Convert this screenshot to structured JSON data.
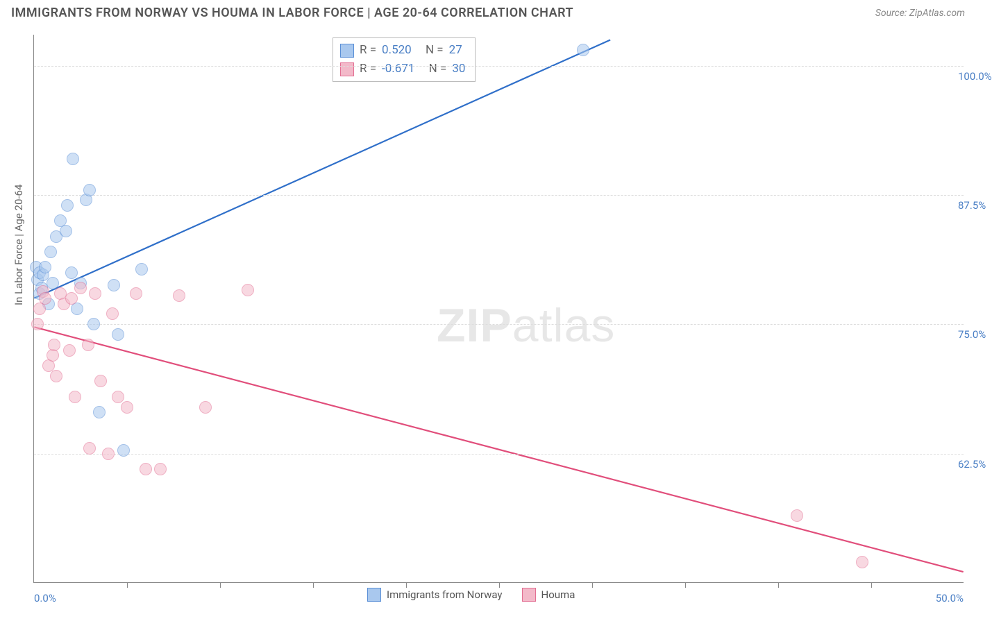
{
  "header": {
    "title": "IMMIGRANTS FROM NORWAY VS HOUMA IN LABOR FORCE | AGE 20-64 CORRELATION CHART",
    "source": "Source: ZipAtlas.com"
  },
  "chart": {
    "type": "scatter",
    "ylabel": "In Labor Force | Age 20-64",
    "xlim": [
      0,
      50
    ],
    "ylim": [
      50,
      103
    ],
    "x_axis_labels": {
      "left": "0.0%",
      "right": "50.0%"
    },
    "y_ticks": [
      {
        "v": 100.0,
        "label": "100.0%"
      },
      {
        "v": 87.5,
        "label": "87.5%"
      },
      {
        "v": 75.0,
        "label": "75.0%"
      },
      {
        "v": 62.5,
        "label": "62.5%"
      }
    ],
    "x_tick_positions": [
      5,
      10,
      15,
      20,
      25,
      30,
      35,
      40,
      45
    ],
    "gridline_color": "#dddddd",
    "axis_color": "#888888",
    "background_color": "#ffffff",
    "watermark": {
      "text_bold": "ZIP",
      "text_rest": "atlas",
      "color": "#000000",
      "opacity": 0.09,
      "fontsize": 68
    },
    "series": [
      {
        "name": "Immigrants from Norway",
        "key": "norway",
        "color_fill": "#a9c8ee",
        "color_stroke": "#5a8fd6",
        "marker_radius": 9,
        "fill_opacity": 0.55,
        "R": "0.520",
        "N": "27",
        "trend": {
          "x1": 0,
          "y1": 77.5,
          "x2": 31,
          "y2": 102.5,
          "color": "#2f6fc9",
          "width": 2.2
        },
        "points": [
          {
            "x": 0.1,
            "y": 80.5
          },
          {
            "x": 0.2,
            "y": 79.3
          },
          {
            "x": 0.3,
            "y": 78.0
          },
          {
            "x": 0.3,
            "y": 80.0
          },
          {
            "x": 0.4,
            "y": 78.5
          },
          {
            "x": 0.5,
            "y": 79.8
          },
          {
            "x": 0.6,
            "y": 80.5
          },
          {
            "x": 0.8,
            "y": 77.0
          },
          {
            "x": 0.9,
            "y": 82.0
          },
          {
            "x": 1.0,
            "y": 79.0
          },
          {
            "x": 1.2,
            "y": 83.5
          },
          {
            "x": 1.4,
            "y": 85.0
          },
          {
            "x": 1.7,
            "y": 84.0
          },
          {
            "x": 1.8,
            "y": 86.5
          },
          {
            "x": 2.1,
            "y": 91.0
          },
          {
            "x": 2.3,
            "y": 76.5
          },
          {
            "x": 2.5,
            "y": 79.0
          },
          {
            "x": 2.8,
            "y": 87.0
          },
          {
            "x": 3.0,
            "y": 88.0
          },
          {
            "x": 3.2,
            "y": 75.0
          },
          {
            "x": 3.5,
            "y": 66.5
          },
          {
            "x": 4.3,
            "y": 78.8
          },
          {
            "x": 4.5,
            "y": 74.0
          },
          {
            "x": 4.8,
            "y": 62.8
          },
          {
            "x": 5.8,
            "y": 80.3
          },
          {
            "x": 2.0,
            "y": 80.0
          },
          {
            "x": 29.5,
            "y": 101.5
          }
        ]
      },
      {
        "name": "Houma",
        "key": "houma",
        "color_fill": "#f3b9c9",
        "color_stroke": "#e36f93",
        "marker_radius": 9,
        "fill_opacity": 0.55,
        "R": "-0.671",
        "N": "30",
        "trend": {
          "x1": 0,
          "y1": 74.7,
          "x2": 50,
          "y2": 51.0,
          "color": "#e14e7b",
          "width": 2.2
        },
        "points": [
          {
            "x": 0.2,
            "y": 75.0
          },
          {
            "x": 0.3,
            "y": 76.5
          },
          {
            "x": 0.5,
            "y": 78.2
          },
          {
            "x": 0.6,
            "y": 77.5
          },
          {
            "x": 0.8,
            "y": 71.0
          },
          {
            "x": 1.0,
            "y": 72.0
          },
          {
            "x": 1.1,
            "y": 73.0
          },
          {
            "x": 1.2,
            "y": 70.0
          },
          {
            "x": 1.4,
            "y": 78.0
          },
          {
            "x": 1.6,
            "y": 77.0
          },
          {
            "x": 1.9,
            "y": 72.5
          },
          {
            "x": 2.0,
            "y": 77.5
          },
          {
            "x": 2.2,
            "y": 68.0
          },
          {
            "x": 2.5,
            "y": 78.5
          },
          {
            "x": 2.9,
            "y": 73.0
          },
          {
            "x": 3.0,
            "y": 63.0
          },
          {
            "x": 3.3,
            "y": 78.0
          },
          {
            "x": 3.6,
            "y": 69.5
          },
          {
            "x": 4.0,
            "y": 62.5
          },
          {
            "x": 4.2,
            "y": 76.0
          },
          {
            "x": 4.5,
            "y": 68.0
          },
          {
            "x": 5.0,
            "y": 67.0
          },
          {
            "x": 5.5,
            "y": 78.0
          },
          {
            "x": 6.0,
            "y": 61.0
          },
          {
            "x": 6.8,
            "y": 61.0
          },
          {
            "x": 7.8,
            "y": 77.8
          },
          {
            "x": 9.2,
            "y": 67.0
          },
          {
            "x": 11.5,
            "y": 78.3
          },
          {
            "x": 41.0,
            "y": 56.5
          },
          {
            "x": 44.5,
            "y": 52.0
          }
        ]
      }
    ],
    "legend_top": {
      "border_color": "#bbbbbb",
      "rows": [
        {
          "swatch_fill": "#a9c8ee",
          "swatch_stroke": "#5a8fd6",
          "r_label": "R =",
          "r_val": "0.520",
          "n_label": "N =",
          "n_val": "27"
        },
        {
          "swatch_fill": "#f3b9c9",
          "swatch_stroke": "#e36f93",
          "r_label": "R =",
          "r_val": "-0.671",
          "n_label": "N =",
          "n_val": "30"
        }
      ]
    },
    "legend_bottom": [
      {
        "swatch_fill": "#a9c8ee",
        "swatch_stroke": "#5a8fd6",
        "label": "Immigrants from Norway"
      },
      {
        "swatch_fill": "#f3b9c9",
        "swatch_stroke": "#e36f93",
        "label": "Houma"
      }
    ],
    "label_fontsize": 15,
    "axis_value_color": "#4a7fc5"
  }
}
